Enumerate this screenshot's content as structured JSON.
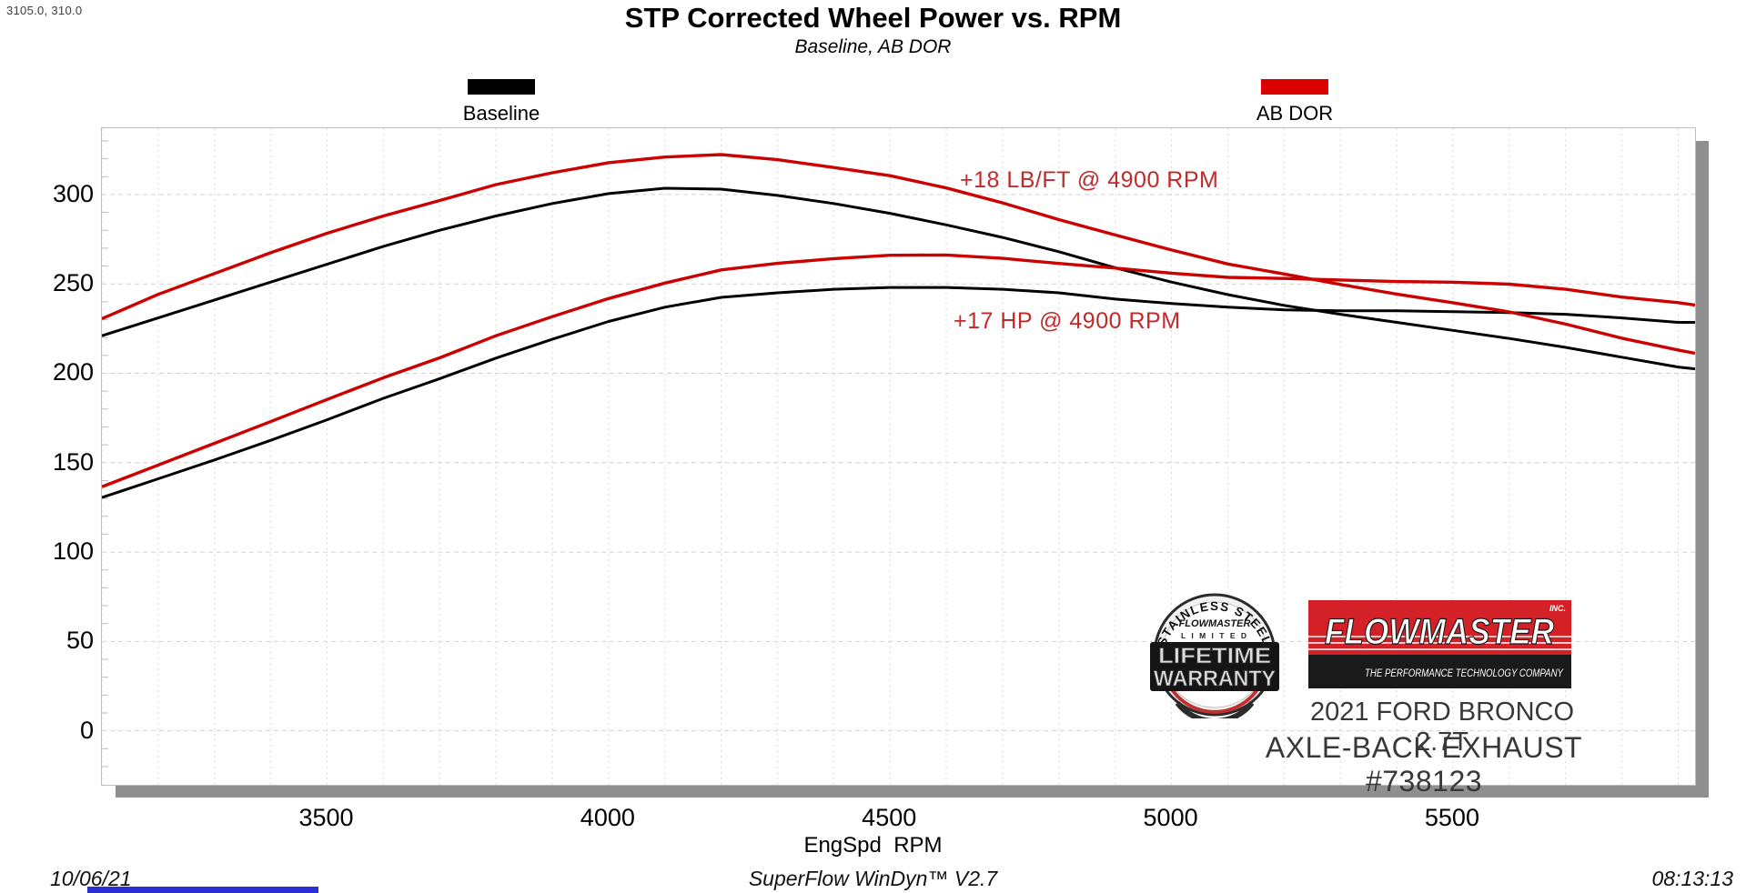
{
  "readout": {
    "value": "3105.0, 310.0"
  },
  "header": {
    "title": "STP Corrected Wheel Power vs. RPM",
    "subtitle": "Baseline, AB DOR"
  },
  "legend": {
    "baseline": {
      "label": "Baseline",
      "color": "#000000"
    },
    "abdor": {
      "label": "AB DOR",
      "color": "#dd0000"
    }
  },
  "annotations": {
    "torque_gain": "+18 LB/FT @ 4900 RPM",
    "hp_gain": "+17 HP @ 4900 RPM",
    "color": "#c22929"
  },
  "axes": {
    "x_label": "EngSpd  RPM",
    "x_ticks": [
      3500,
      4000,
      4500,
      5000,
      5500
    ],
    "y_ticks": [
      0,
      50,
      100,
      150,
      200,
      250,
      300
    ],
    "x_min": 3100,
    "x_max": 5930,
    "y_min": -30.2,
    "y_max": 337.1,
    "x_grid_step": 100,
    "y_grid_step": 50,
    "grid_color": "#d9d9d9"
  },
  "chart_data": {
    "type": "line",
    "title": "STP Corrected Wheel Power vs. RPM",
    "subtitle": "Baseline, AB DOR",
    "xlabel": "EngSpd RPM",
    "ylabel": "",
    "x_range": [
      3100,
      5930
    ],
    "ylim": [
      -30,
      337
    ],
    "y_ticks": [
      0,
      50,
      100,
      150,
      200,
      250,
      300
    ],
    "grid": "dashed",
    "legend_position": "top",
    "x": [
      3100,
      3200,
      3300,
      3400,
      3500,
      3600,
      3700,
      3800,
      3900,
      4000,
      4100,
      4200,
      4300,
      4400,
      4500,
      4600,
      4700,
      4800,
      4900,
      5000,
      5100,
      5200,
      5300,
      5400,
      5500,
      5600,
      5700,
      5800,
      5900,
      5930
    ],
    "series": [
      {
        "name": "Baseline Torque (LB/FT)",
        "color": "#000000",
        "values": [
          221,
          231,
          241,
          251,
          261,
          271,
          280,
          288,
          295,
          300.5,
          303.5,
          303,
          299.5,
          295,
          289.5,
          283,
          276,
          268,
          259,
          251,
          244,
          238,
          233,
          228.5,
          224,
          219.5,
          214.5,
          209,
          203.5,
          202.5
        ]
      },
      {
        "name": "AB DOR Torque (LB/FT)",
        "color": "#cc0000",
        "values": [
          230,
          244,
          256,
          268,
          278,
          288,
          297,
          305,
          312,
          318,
          321.5,
          322,
          319.5,
          315.5,
          310,
          303.5,
          295.5,
          286.5,
          277,
          269,
          261.5,
          255,
          249.5,
          244.5,
          240,
          234,
          227.5,
          220,
          212.5,
          211
        ]
      },
      {
        "name": "Baseline Power (HP)",
        "color": "#000000",
        "values": [
          130.5,
          141,
          151.5,
          162.5,
          174,
          186,
          197,
          208.5,
          219,
          229,
          237,
          242.5,
          245,
          247,
          248,
          248,
          247,
          245,
          241.5,
          239,
          237,
          235.5,
          235,
          235,
          234.5,
          234,
          233,
          231,
          228.5,
          228.5
        ]
      },
      {
        "name": "AB DOR Power (HP)",
        "color": "#cc0000",
        "values": [
          136,
          148.5,
          161,
          173.5,
          185,
          197.5,
          209,
          220.5,
          231.5,
          242,
          251,
          257.5,
          261.5,
          264.5,
          265.5,
          266,
          264.5,
          262,
          258.5,
          256,
          254,
          252.5,
          252,
          251.5,
          251.5,
          249.5,
          247,
          243,
          239,
          238
        ]
      }
    ],
    "annotations": [
      "+18 LB/FT @ 4900 RPM",
      "+17 HP @ 4900 RPM"
    ]
  },
  "branding": {
    "badge": {
      "arc_top": "STAINLESS STEEL",
      "brand": "FLOWMASTER",
      "limited": "L I M I T E D",
      "big1": "LIFETIME",
      "big2": "WARRANTY"
    },
    "logo": {
      "name": "FLOWMASTER",
      "suffix": "INC.",
      "tagline": "THE PERFORMANCE TECHNOLOGY COMPANY",
      "red": "#d42027"
    },
    "vehicle_line1": "2021 FORD BRONCO 2.7T",
    "vehicle_line2": "AXLE-BACK EXHAUST #738123"
  },
  "footer": {
    "date": "10/06/21",
    "app": "SuperFlow WinDyn™ V2.7",
    "time": "08:13:13"
  }
}
